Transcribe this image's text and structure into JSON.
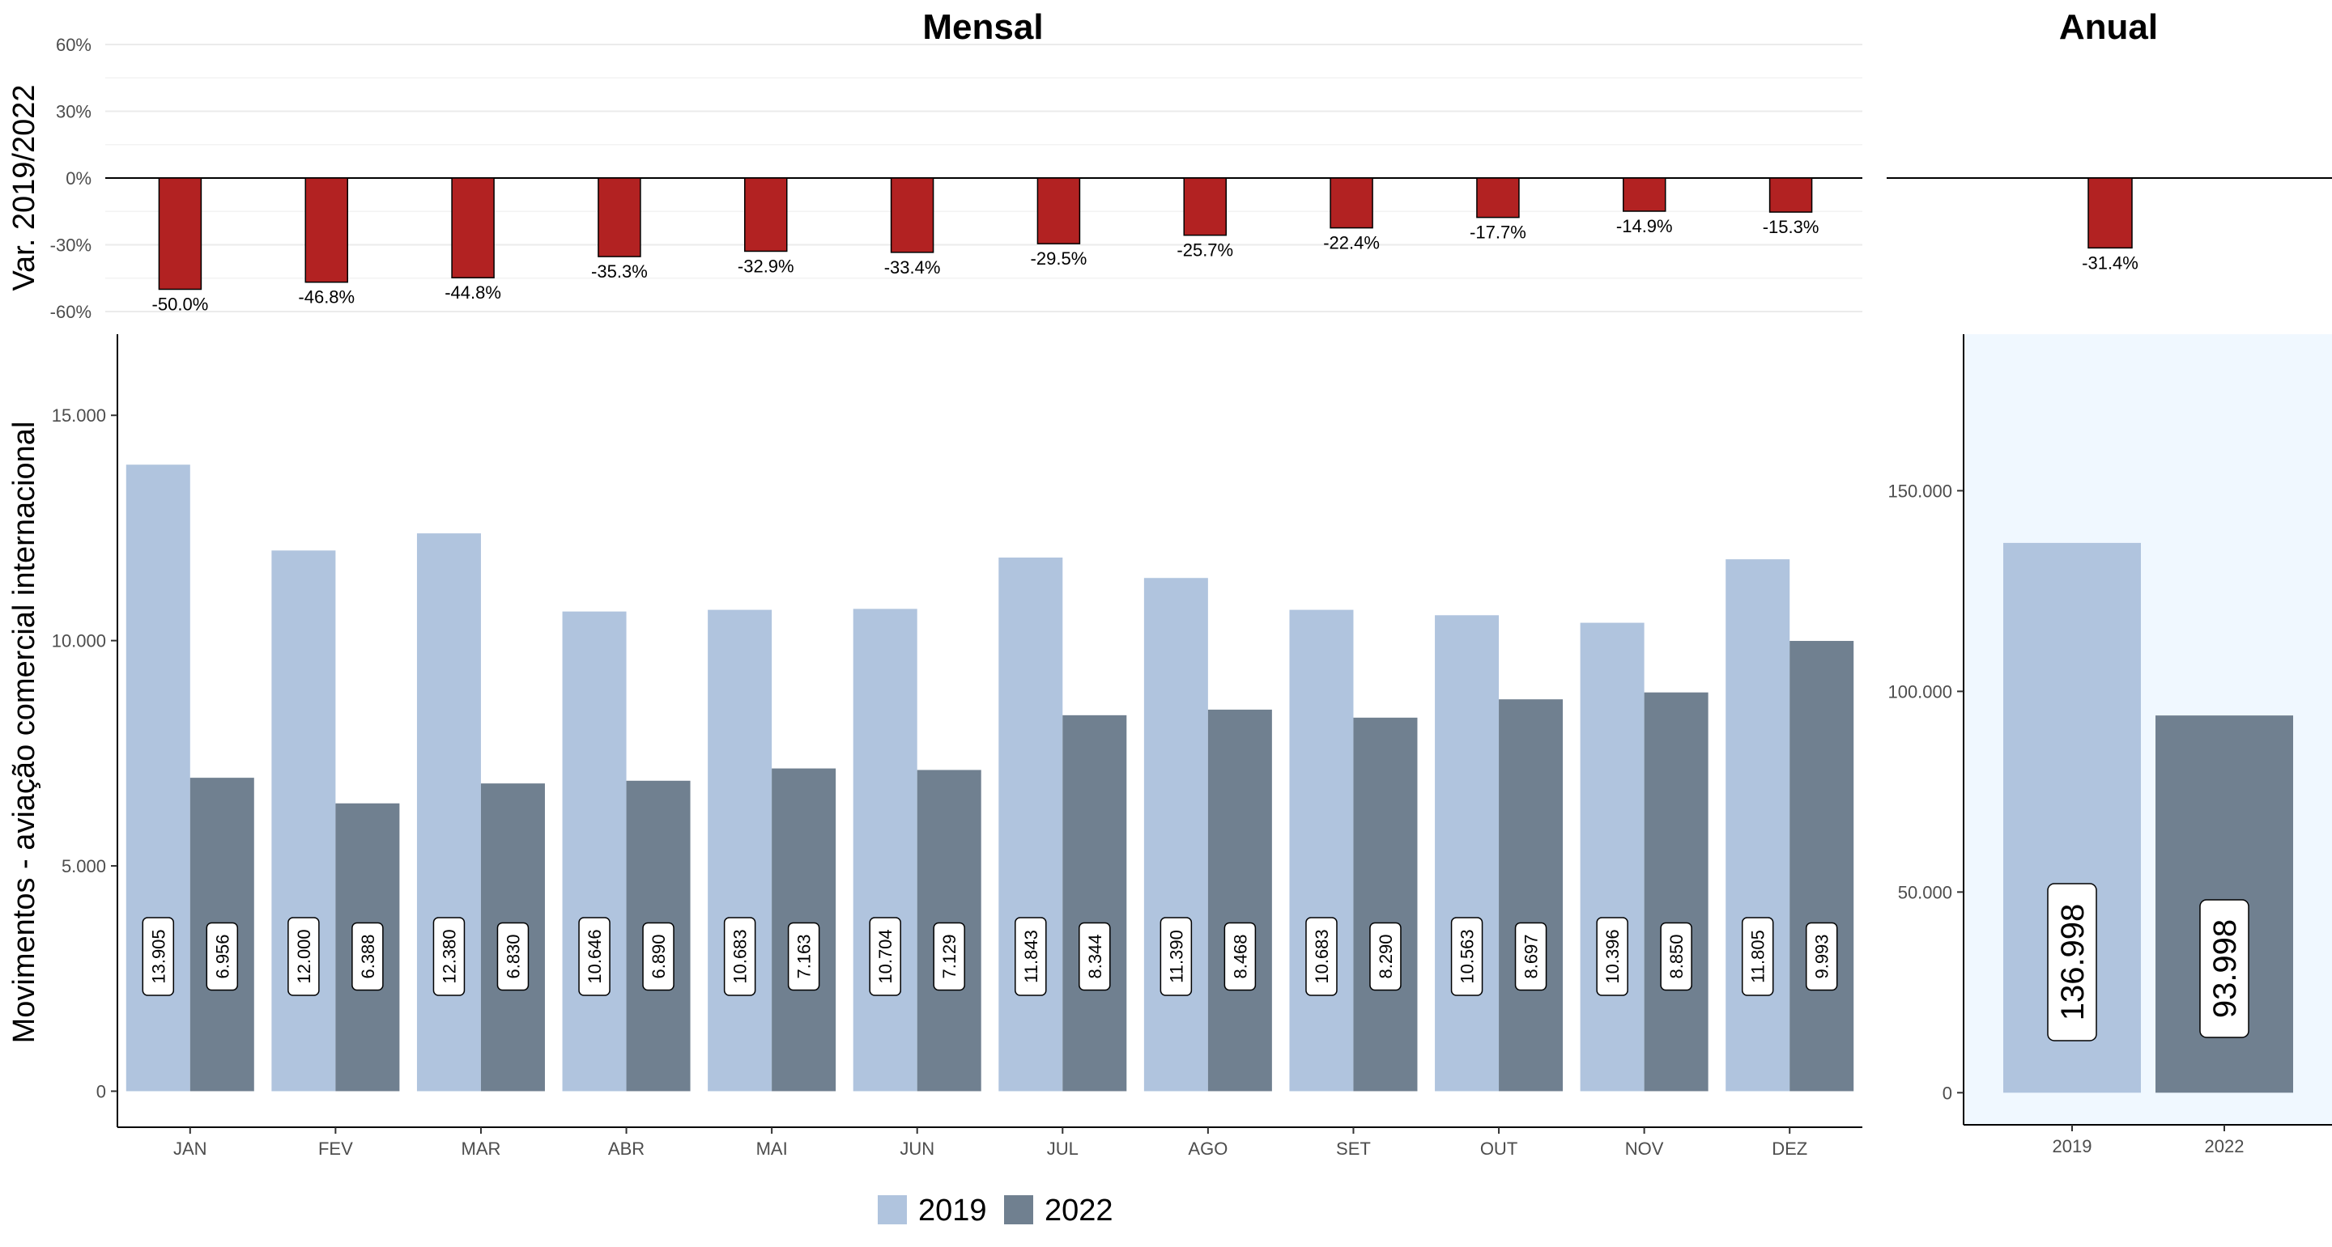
{
  "panels": {
    "monthly_title": "Mensal",
    "annual_title": "Anual"
  },
  "axes": {
    "top_ylabel": "Var. 2019/2022",
    "bottom_ylabel": "Movimentos - aviação comercial internacional"
  },
  "legend": {
    "items": [
      {
        "label": "2019",
        "color": "#b0c4de"
      },
      {
        "label": "2022",
        "color": "#708090"
      }
    ]
  },
  "chart_data": [
    {
      "type": "bar",
      "panel": "Mensal - Var. 2019/2022",
      "categories": [
        "JAN",
        "FEV",
        "MAR",
        "ABR",
        "MAI",
        "JUN",
        "JUL",
        "AGO",
        "SET",
        "OUT",
        "NOV",
        "DEZ"
      ],
      "values": [
        -50.0,
        -46.8,
        -44.8,
        -35.3,
        -32.9,
        -33.4,
        -29.5,
        -25.7,
        -22.4,
        -17.7,
        -14.9,
        -15.3
      ],
      "value_labels": [
        "-50.0%",
        "-46.8%",
        "-44.8%",
        "-35.3%",
        "-32.9%",
        "-33.4%",
        "-29.5%",
        "-25.7%",
        "-22.4%",
        "-17.7%",
        "-14.9%",
        "-15.3%"
      ],
      "ylabel": "Var. 2019/2022",
      "ylim": [
        -60,
        60
      ],
      "yticks": [
        -60,
        -30,
        0,
        30,
        60
      ],
      "ytick_labels": [
        "-60%",
        "-30%",
        "0%",
        "30%",
        "60%"
      ],
      "color": "#b22222",
      "grid": true
    },
    {
      "type": "bar",
      "panel": "Anual - Var. 2019/2022",
      "categories": [
        ""
      ],
      "values": [
        -31.4
      ],
      "value_labels": [
        "-31.4%"
      ],
      "ylim": [
        -60,
        60
      ],
      "color": "#b22222",
      "grid": false
    },
    {
      "type": "bar",
      "panel": "Mensal",
      "categories": [
        "JAN",
        "FEV",
        "MAR",
        "ABR",
        "MAI",
        "JUN",
        "JUL",
        "AGO",
        "SET",
        "OUT",
        "NOV",
        "DEZ"
      ],
      "series": [
        {
          "name": "2019",
          "values": [
            13905,
            12000,
            12380,
            10646,
            10683,
            10704,
            11843,
            11390,
            10683,
            10563,
            10396,
            11805
          ],
          "labels": [
            "13.905",
            "12.000",
            "12.380",
            "10.646",
            "10.683",
            "10.704",
            "11.843",
            "11.390",
            "10.683",
            "10.563",
            "10.396",
            "11.805"
          ]
        },
        {
          "name": "2022",
          "values": [
            6956,
            6388,
            6830,
            6890,
            7163,
            7129,
            8344,
            8468,
            8290,
            8697,
            8850,
            9993
          ],
          "labels": [
            "6.956",
            "6.388",
            "6.830",
            "6.890",
            "7.163",
            "7.129",
            "8.344",
            "8.468",
            "8.290",
            "8.697",
            "8.850",
            "9.993"
          ]
        }
      ],
      "ylabel": "Movimentos - aviação comercial internacional",
      "ylim": [
        -800,
        16800
      ],
      "yticks": [
        0,
        5000,
        10000,
        15000
      ],
      "ytick_labels": [
        "0",
        "5.000",
        "10.000",
        "15.000"
      ],
      "grid": false
    },
    {
      "type": "bar",
      "panel": "Anual",
      "categories": [
        "2019",
        "2022"
      ],
      "values": [
        136998,
        93998
      ],
      "value_labels": [
        "136.998",
        "93.998"
      ],
      "colors": [
        "#b0c4de",
        "#708090"
      ],
      "ylim": [
        -8000,
        189000
      ],
      "yticks": [
        0,
        50000,
        100000,
        150000
      ],
      "ytick_labels": [
        "0",
        "50.000",
        "100.000",
        "150.000"
      ],
      "background": "#f0f8ff",
      "grid": false
    }
  ]
}
